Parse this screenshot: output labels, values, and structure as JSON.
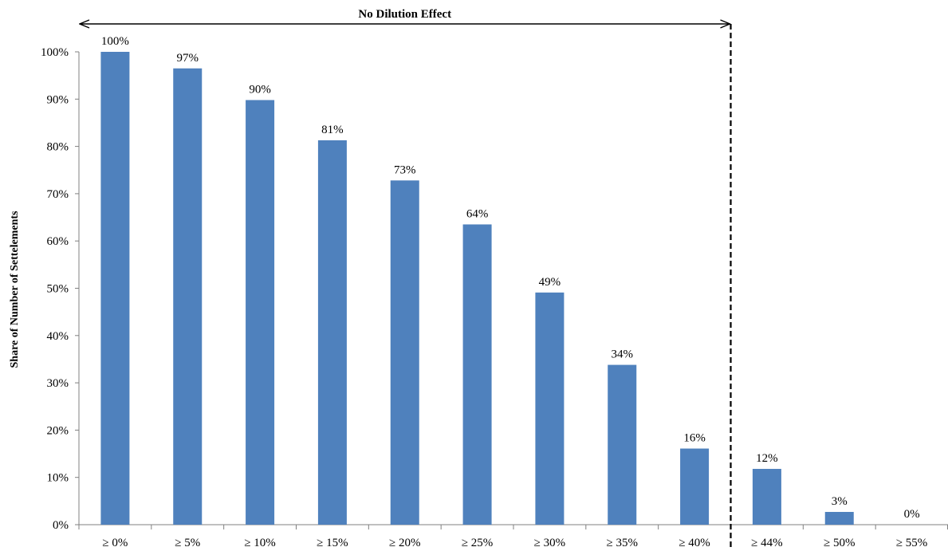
{
  "chart_data": {
    "type": "bar",
    "title": "",
    "xlabel": "",
    "ylabel": "Share of Number  of Settelements",
    "ylim": [
      0,
      100
    ],
    "y_ticks": [
      "0%",
      "10%",
      "20%",
      "30%",
      "40%",
      "50%",
      "60%",
      "70%",
      "80%",
      "90%",
      "100%"
    ],
    "grid": false,
    "legend": "none",
    "bar_color": "#4F81BD",
    "categories": [
      "≥ 0%",
      "≥ 5%",
      "≥ 10%",
      "≥ 15%",
      "≥ 20%",
      "≥ 25%",
      "≥ 30%",
      "≥ 35%",
      "≥ 40%",
      "≥ 44%",
      "≥ 50%",
      "≥ 55%"
    ],
    "values": [
      100,
      96.5,
      89.8,
      81.3,
      72.8,
      63.5,
      49.1,
      33.8,
      16.1,
      11.8,
      2.7,
      0
    ],
    "data_labels": [
      "100%",
      "97%",
      "90%",
      "81%",
      "73%",
      "64%",
      "49%",
      "34%",
      "16%",
      "12%",
      "3%",
      "0%"
    ],
    "annotations": [
      {
        "text": "No Dilution  Effect",
        "type": "double-arrow-span",
        "from_category": "≥ 0%",
        "to_category": "≥ 40%"
      },
      {
        "text": "",
        "type": "dashed-vertical-line",
        "between_categories": [
          "≥ 40%",
          "≥ 44%"
        ]
      }
    ]
  }
}
